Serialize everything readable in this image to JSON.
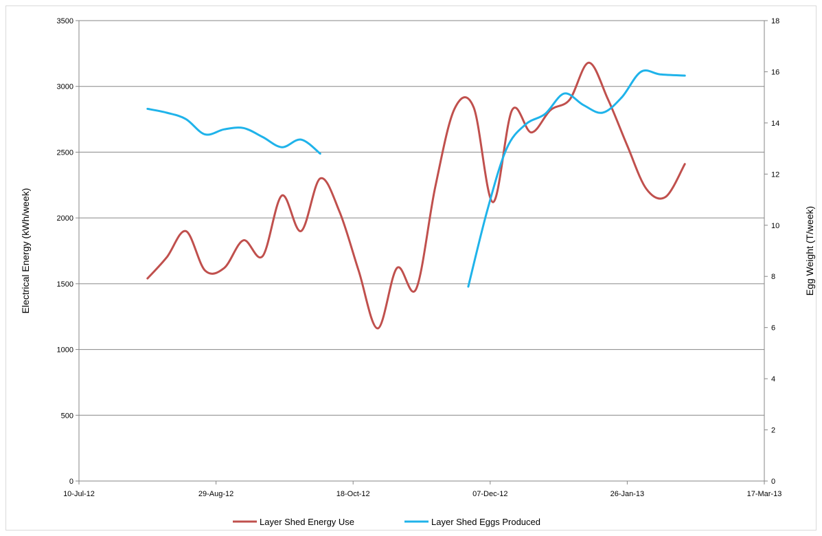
{
  "chart_data": {
    "type": "line",
    "title": "",
    "xlabel": "",
    "ylabel": "Electrical Energy (kWh/week)",
    "y2label": "Egg Weight (T/week)",
    "x_ticks": [
      "10-Jul-12",
      "29-Aug-12",
      "18-Oct-12",
      "07-Dec-12",
      "26-Jan-13",
      "17-Mar-13"
    ],
    "xlim": [
      "2012-07-10",
      "2013-03-17"
    ],
    "ylim": [
      0,
      3500
    ],
    "y_ticks": [
      0,
      500,
      1000,
      1500,
      2000,
      2500,
      3000,
      3500
    ],
    "y2lim": [
      0,
      18
    ],
    "y2_ticks": [
      0,
      2,
      4,
      6,
      8,
      10,
      12,
      14,
      16,
      18
    ],
    "grid": "horizontal",
    "legend": "bottom",
    "series": [
      {
        "name": "Layer Shed Energy Use",
        "axis": "left",
        "color": "#c0504d",
        "x": [
          "2012-08-04",
          "2012-08-11",
          "2012-08-18",
          "2012-08-25",
          "2012-09-01",
          "2012-09-08",
          "2012-09-15",
          "2012-09-22",
          "2012-09-29",
          "2012-10-06",
          "2012-10-13",
          "2012-10-20",
          "2012-10-27",
          "2012-11-03",
          "2012-11-10",
          "2012-11-17",
          "2012-11-24",
          "2012-12-01",
          "2012-12-08",
          "2012-12-15",
          "2012-12-22",
          "2012-12-29",
          "2013-01-05",
          "2013-01-12",
          "2013-01-19",
          "2013-01-26",
          "2013-02-02",
          "2013-02-09",
          "2013-02-16"
        ],
        "y": [
          1540,
          1700,
          1900,
          1600,
          1620,
          1830,
          1710,
          2170,
          1900,
          2300,
          2050,
          1600,
          1160,
          1620,
          1460,
          2240,
          2830,
          2840,
          2120,
          2820,
          2650,
          2820,
          2900,
          3180,
          2900,
          2550,
          2220,
          2160,
          2410
        ]
      },
      {
        "name": "Layer Shed Eggs Produced",
        "axis": "right",
        "color": "#1fb3ea",
        "x": [
          "2012-08-04",
          "2012-08-11",
          "2012-08-18",
          "2012-08-25",
          "2012-09-01",
          "2012-09-08",
          "2012-09-15",
          "2012-09-22",
          "2012-09-29",
          "2012-10-06",
          "2012-10-13",
          null,
          "2012-11-29",
          "2012-12-06",
          "2012-12-13",
          "2012-12-20",
          "2012-12-27",
          "2013-01-03",
          "2013-01-10",
          "2013-01-17",
          "2013-01-24",
          "2013-01-31",
          "2013-02-07",
          "2013-02-16"
        ],
        "y": [
          14.55,
          14.4,
          14.15,
          13.55,
          13.75,
          13.8,
          13.45,
          13.05,
          13.35,
          12.8,
          null,
          null,
          7.6,
          10.6,
          13.0,
          13.95,
          14.35,
          15.15,
          14.7,
          14.4,
          15.0,
          16.0,
          15.9,
          15.85
        ]
      }
    ]
  }
}
